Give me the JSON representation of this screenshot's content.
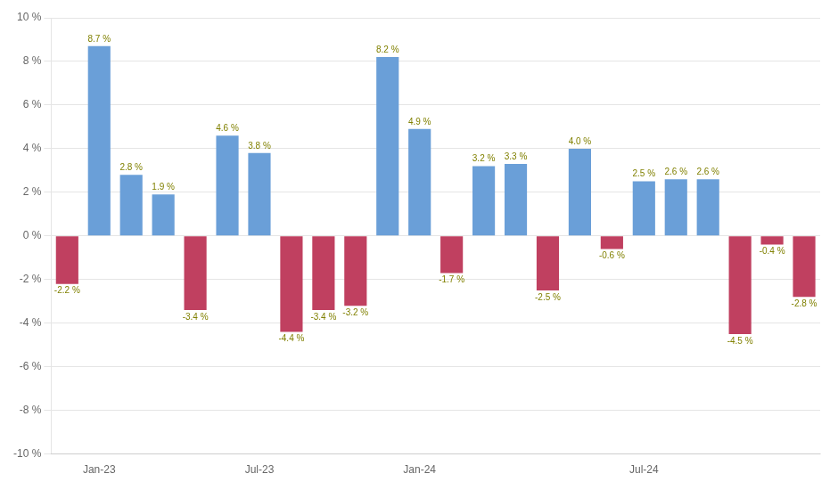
{
  "chart_data": {
    "type": "bar",
    "categories": [
      null,
      "Jan-23",
      null,
      null,
      null,
      null,
      "Jul-23",
      null,
      null,
      null,
      null,
      "Jan-24",
      null,
      null,
      null,
      null,
      null,
      null,
      "Jul-24",
      null,
      null,
      null,
      null,
      null
    ],
    "values": [
      -2.2,
      8.7,
      2.8,
      1.9,
      -3.4,
      4.6,
      3.8,
      -4.4,
      -3.4,
      -3.2,
      8.2,
      4.9,
      -1.7,
      3.2,
      3.3,
      -2.5,
      4.0,
      -0.6,
      2.5,
      2.6,
      2.6,
      -4.5,
      -0.4,
      -2.8
    ],
    "value_labels": [
      "-2.2 %",
      "8.7 %",
      "2.8 %",
      "1.9 %",
      "-3.4 %",
      "4.6 %",
      "3.8 %",
      "-4.4 %",
      "-3.4 %",
      "-3.2 %",
      "8.2 %",
      "4.9 %",
      "-1.7 %",
      "3.2 %",
      "3.3 %",
      "-2.5 %",
      "4.0 %",
      "-0.6 %",
      "2.5 %",
      "2.6 %",
      "2.6 %",
      "-4.5 %",
      "-0.4 %",
      "-2.8 %"
    ],
    "colors": [
      "#c04060",
      "#6a9fd8",
      "#6a9fd8",
      "#6a9fd8",
      "#c04060",
      "#6a9fd8",
      "#6a9fd8",
      "#c04060",
      "#c04060",
      "#c04060",
      "#6a9fd8",
      "#6a9fd8",
      "#c04060",
      "#6a9fd8",
      "#6a9fd8",
      "#c04060",
      "#6a9fd8",
      "#c04060",
      "#6a9fd8",
      "#6a9fd8",
      "#6a9fd8",
      "#c04060",
      "#c04060",
      "#c04060"
    ],
    "ylim": [
      -10,
      10
    ],
    "yticks": [
      {
        "value": -10,
        "label": "-10 %"
      },
      {
        "value": -8,
        "label": "-8 %"
      },
      {
        "value": -6,
        "label": "-6 %"
      },
      {
        "value": -4,
        "label": "-4 %"
      },
      {
        "value": -2,
        "label": "-2 %"
      },
      {
        "value": 0,
        "label": "0 %"
      },
      {
        "value": 2,
        "label": "2 %"
      },
      {
        "value": 4,
        "label": "4 %"
      },
      {
        "value": 6,
        "label": "6 %"
      },
      {
        "value": 8,
        "label": "8 %"
      },
      {
        "value": 10,
        "label": "10 %"
      }
    ],
    "grid": true,
    "data_labels": true
  }
}
